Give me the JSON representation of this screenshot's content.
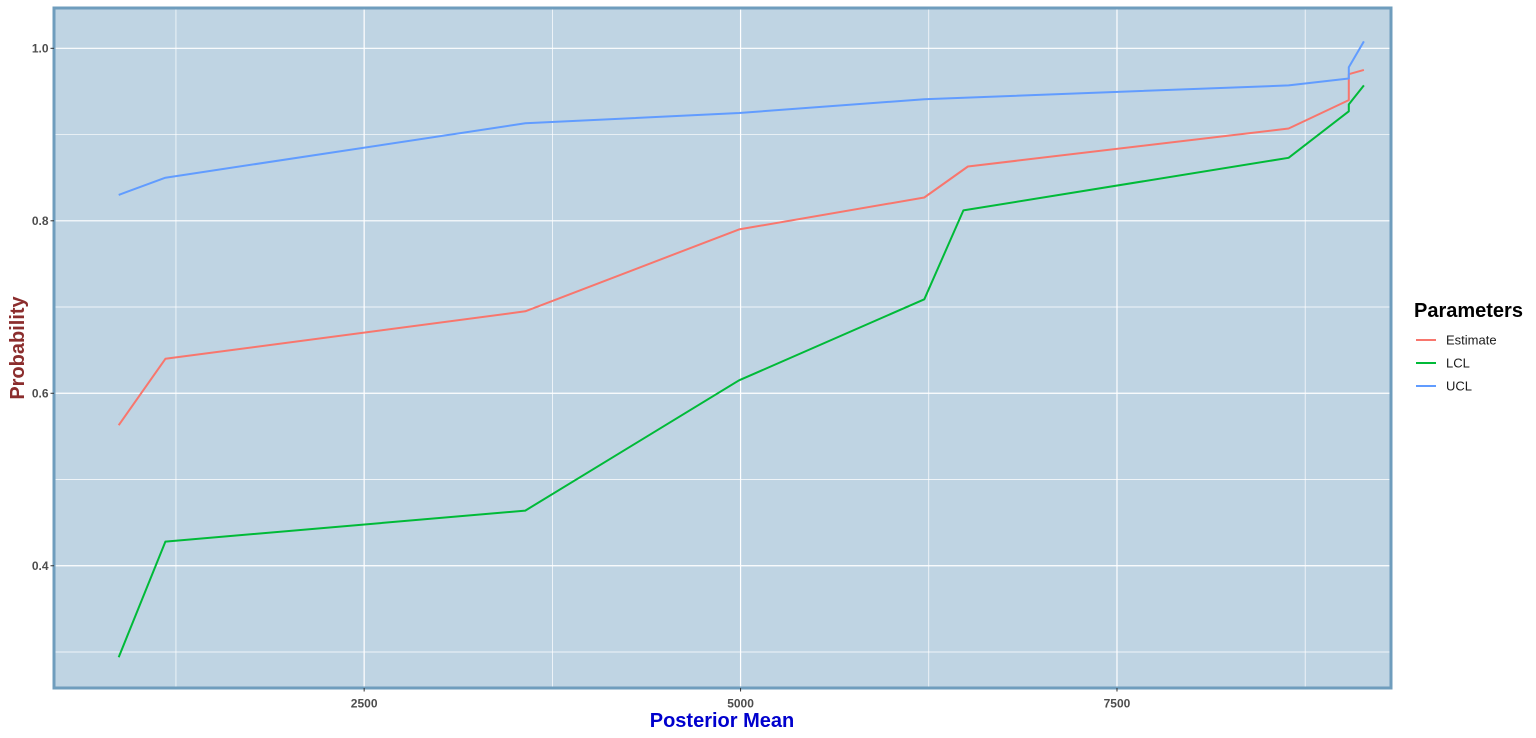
{
  "chart_data": {
    "type": "line",
    "xlabel": "Posterior Mean",
    "ylabel": "Probability",
    "xlim": [
      450,
      9310
    ],
    "ylim": [
      0.26,
      1.045
    ],
    "x_ticks": [
      2500,
      5000,
      7500
    ],
    "x_minor_ticks": [
      1250,
      3750,
      6250,
      8750
    ],
    "y_ticks": [
      0.4,
      0.6,
      0.8,
      1.0
    ],
    "y_tick_labels": [
      "0.4",
      "0.6",
      "0.8",
      "1.0"
    ],
    "y_minor_ticks": [
      0.3,
      0.5,
      0.7,
      0.9
    ],
    "grid": true,
    "legend": {
      "title": "Parameters",
      "position": "right"
    },
    "series": [
      {
        "name": "Estimate",
        "color": "#F8766D",
        "points": [
          [
            870,
            0.563
          ],
          [
            1180,
            0.64
          ],
          [
            3570,
            0.695
          ],
          [
            4990,
            0.79
          ],
          [
            6220,
            0.827
          ],
          [
            6510,
            0.863
          ],
          [
            8640,
            0.907
          ],
          [
            9040,
            0.94
          ],
          [
            9040,
            0.97
          ],
          [
            9140,
            0.975
          ]
        ]
      },
      {
        "name": "LCL",
        "color": "#00BA38",
        "points": [
          [
            870,
            0.294
          ],
          [
            1180,
            0.428
          ],
          [
            3570,
            0.464
          ],
          [
            4990,
            0.615
          ],
          [
            6220,
            0.709
          ],
          [
            6480,
            0.812
          ],
          [
            8640,
            0.873
          ],
          [
            9040,
            0.927
          ],
          [
            9040,
            0.935
          ],
          [
            9140,
            0.957
          ]
        ]
      },
      {
        "name": "UCL",
        "color": "#619CFF",
        "points": [
          [
            870,
            0.83
          ],
          [
            1180,
            0.85
          ],
          [
            3570,
            0.913
          ],
          [
            4990,
            0.925
          ],
          [
            6220,
            0.941
          ],
          [
            8640,
            0.957
          ],
          [
            9040,
            0.965
          ],
          [
            9040,
            0.978
          ],
          [
            9140,
            1.008
          ]
        ]
      }
    ]
  }
}
